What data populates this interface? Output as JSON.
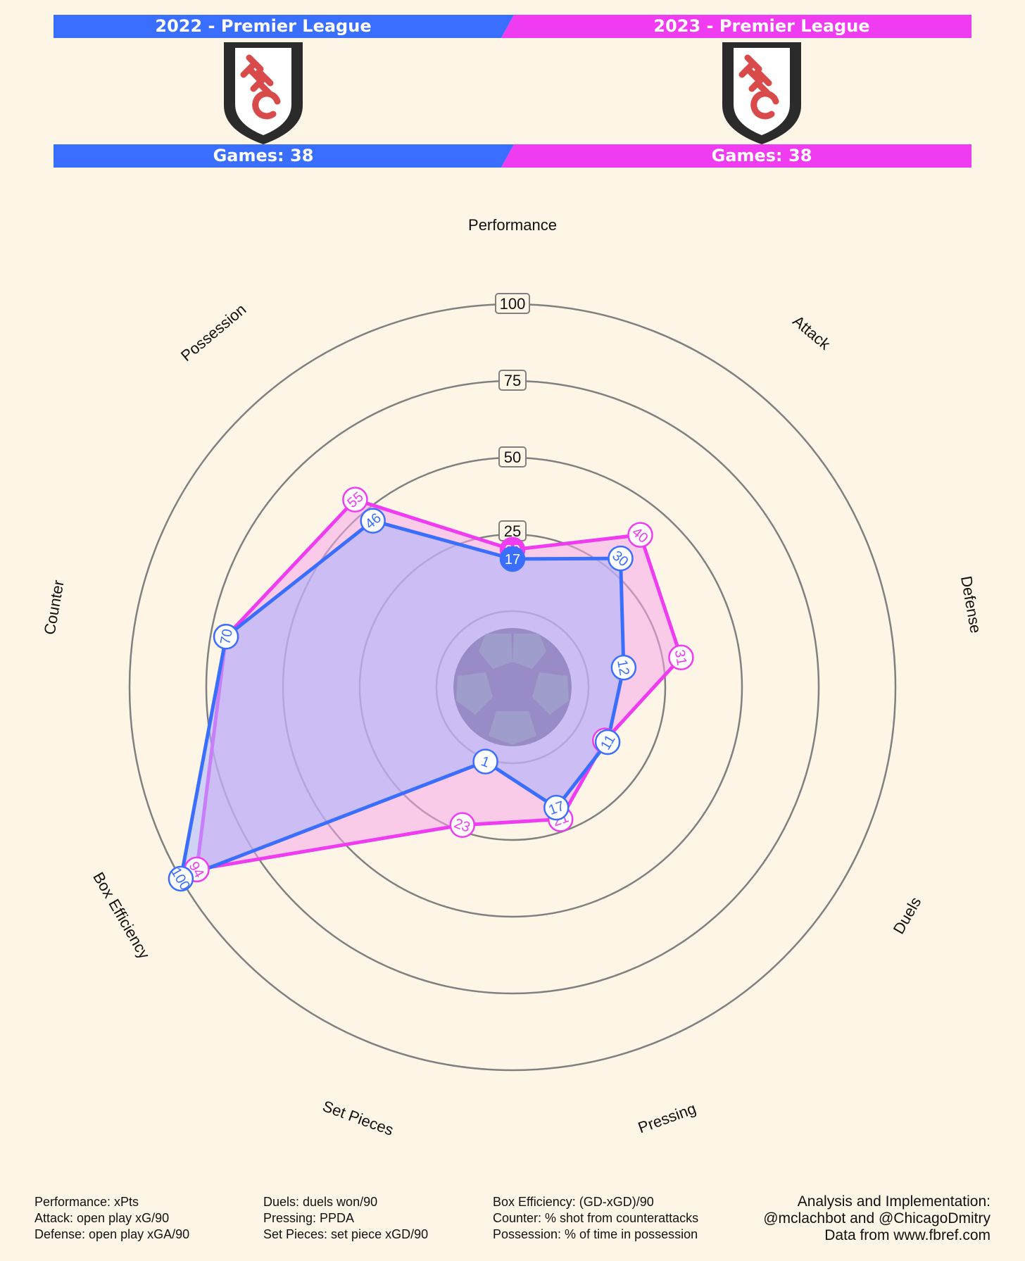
{
  "header": {
    "left": {
      "title": "2022 - Premier League",
      "games": "Games: 38"
    },
    "right": {
      "title": "2023 - Premier League",
      "games": "Games: 38"
    }
  },
  "colors": {
    "team1": "#3a6eff",
    "team2": "#f03cf0",
    "team1_fill": "#a7b4ff",
    "team2_fill": "#f6a8ea",
    "background": "#fdf5e6"
  },
  "chart_data": {
    "type": "radar",
    "axes": [
      "Performance",
      "Attack",
      "Defense",
      "Duels",
      "Pressing",
      "Set Pieces",
      "Box Efficiency",
      "Counter",
      "Possession"
    ],
    "ticks": [
      "25",
      "50",
      "75",
      "100"
    ],
    "series": [
      {
        "name": "2022 - Premier League",
        "values": [
          17,
          30,
          12,
          11,
          17,
          1,
          100,
          70,
          46
        ]
      },
      {
        "name": "2023 - Premier League",
        "values": [
          20,
          40,
          31,
          10,
          21,
          23,
          94,
          70,
          55
        ]
      }
    ]
  },
  "footer": {
    "col1": [
      "Performance: xPts",
      "Attack: open play xG/90",
      "Defense: open play xGA/90"
    ],
    "col2": [
      "Duels: duels won/90",
      "Pressing: PPDA",
      "Set Pieces: set piece xGD/90"
    ],
    "col3": [
      "Box Efficiency: (GD-xGD)/90",
      "Counter: % shot from counterattacks",
      "Possession: % of time in possession"
    ],
    "credits": [
      "Analysis and Implementation:",
      "@mclachbot and @ChicagoDmitry",
      "Data from www.fbref.com"
    ]
  }
}
